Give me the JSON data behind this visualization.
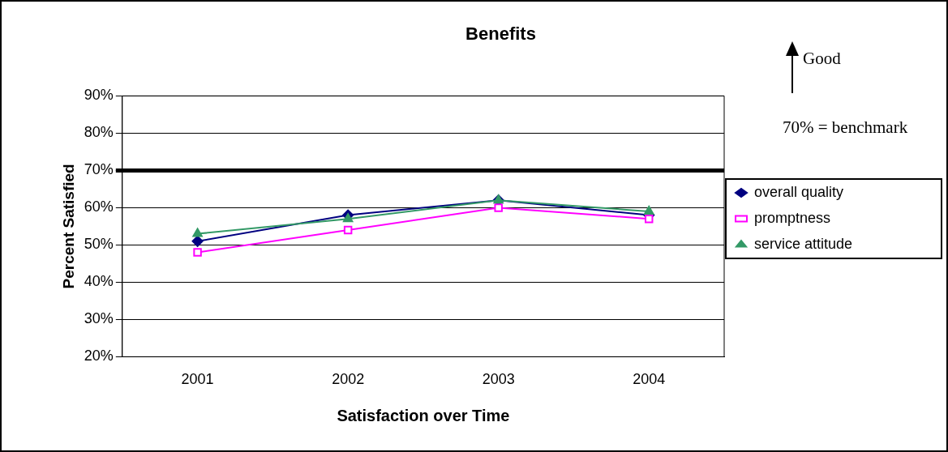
{
  "chart_data": {
    "type": "line",
    "title": "Benefits",
    "xlabel": "Satisfaction over Time",
    "ylabel": "Percent Satisfied",
    "categories": [
      "2001",
      "2002",
      "2003",
      "2004"
    ],
    "series": [
      {
        "name": "overall quality",
        "color": "#000080",
        "marker": "diamond",
        "values": [
          51,
          58,
          62,
          58
        ]
      },
      {
        "name": "promptness",
        "color": "#ff00ff",
        "marker": "square",
        "values": [
          48,
          54,
          60,
          57
        ]
      },
      {
        "name": "service attitude",
        "color": "#339966",
        "marker": "triangle",
        "values": [
          53,
          57,
          62,
          59
        ]
      }
    ],
    "ylim": [
      20,
      90
    ],
    "yticks": [
      {
        "value": 20,
        "label": "20%"
      },
      {
        "value": 30,
        "label": "30%"
      },
      {
        "value": 40,
        "label": "40%"
      },
      {
        "value": 50,
        "label": "50%"
      },
      {
        "value": 60,
        "label": "60%"
      },
      {
        "value": 70,
        "label": "70%"
      },
      {
        "value": 80,
        "label": "80%"
      },
      {
        "value": 90,
        "label": "90%"
      }
    ],
    "grid": "y",
    "legend": "right",
    "line_style": "solid",
    "ref_lines": [
      {
        "axis": "y",
        "value": 70,
        "color": "#000000"
      }
    ],
    "annotations": [
      "Good",
      "70% = benchmark"
    ]
  }
}
